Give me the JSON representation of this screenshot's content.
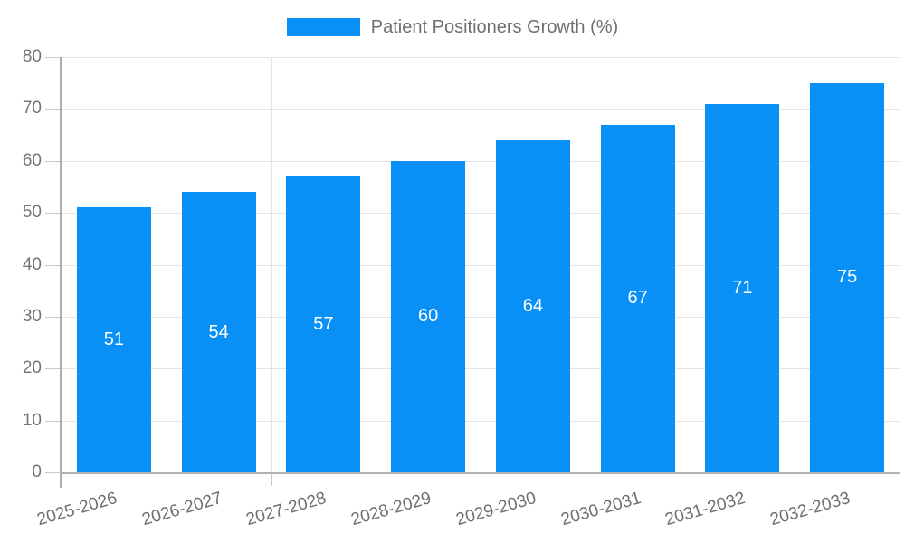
{
  "legend": {
    "label": "Patient Positioners Growth (%)"
  },
  "chart_data": {
    "type": "bar",
    "title": "Patient Positioners Growth (%)",
    "categories": [
      "2025-2026",
      "2026-2027",
      "2027-2028",
      "2028-2029",
      "2029-2030",
      "2030-2031",
      "2031-2032",
      "2032-2033"
    ],
    "values": [
      51,
      54,
      57,
      60,
      64,
      67,
      71,
      75
    ],
    "xlabel": "",
    "ylabel": "",
    "ylim": [
      0,
      80
    ],
    "yticks": [
      0,
      10,
      20,
      30,
      40,
      50,
      60,
      70,
      80
    ],
    "grid": true,
    "legend_position": "top",
    "value_labels": "inside-center",
    "bar_color": "#0890F7",
    "value_label_color": "#FFFFFF",
    "axis_text_color": "#757575",
    "grid_color": "#E4E4E4",
    "axis_line_color": "#B0B0B0"
  }
}
